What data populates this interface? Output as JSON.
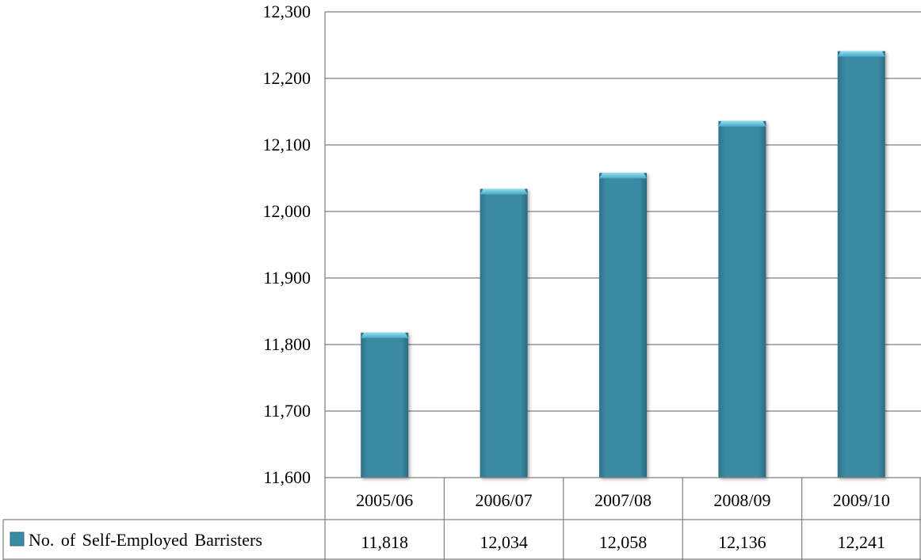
{
  "chart_data": {
    "type": "bar",
    "categories": [
      "2005/06",
      "2006/07",
      "2007/08",
      "2008/09",
      "2009/10"
    ],
    "series": [
      {
        "name": "No. of Self-Employed Barristers",
        "values": [
          11818,
          12034,
          12058,
          12136,
          12241
        ]
      }
    ],
    "value_labels": [
      "11,818",
      "12,034",
      "12,058",
      "12,136",
      "12,241"
    ],
    "y_ticks": [
      "11,600",
      "11,700",
      "11,800",
      "11,900",
      "12,000",
      "12,100",
      "12,200",
      "12,300"
    ],
    "ylim": [
      11600,
      12300
    ],
    "grid": true,
    "legend": "data-table",
    "colors": {
      "bar": "#3a8aa4",
      "bar_top": "#6fcde6",
      "grid": "#7f7f7f"
    }
  }
}
